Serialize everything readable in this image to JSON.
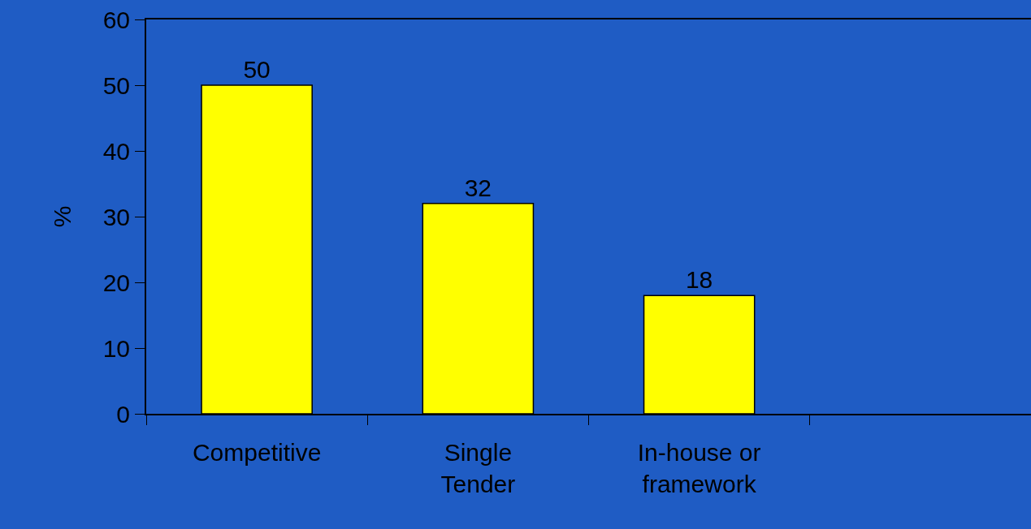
{
  "chart_data": {
    "type": "bar",
    "ylabel": "%",
    "categories": [
      "Competitive",
      "Single Tender",
      "In-house or framework",
      null
    ],
    "values": [
      50,
      32,
      18,
      null
    ],
    "color": "#ffff00",
    "ylim": [
      0,
      60
    ],
    "yticks": [
      0,
      10,
      20,
      30,
      40,
      50,
      60
    ],
    "data_labels": true,
    "grid": false,
    "legend": false
  }
}
